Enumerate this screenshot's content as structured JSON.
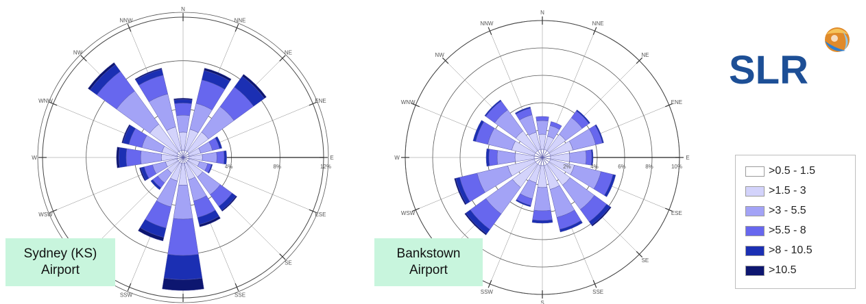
{
  "chart_data": [
    {
      "type": "wind-rose",
      "station": "Sydney (KS)\nAirport",
      "directions": [
        "N",
        "NNE",
        "NE",
        "ENE",
        "E",
        "ESE",
        "SE",
        "SSE",
        "S",
        "SSW",
        "SW",
        "WSW",
        "W",
        "WNW",
        "NW",
        "NNW"
      ],
      "ring_labels": [
        "4%",
        "8%",
        "12%"
      ],
      "speed_bins": [
        ">0.5 - 1.5",
        ">1.5 - 3",
        ">3 - 5.5",
        ">5.5 - 8",
        ">8 - 10.5",
        ">10.5"
      ],
      "max_percent": 12,
      "series": [
        {
          "direction": "N",
          "values": [
            0.6,
            1.5,
            1.4,
            1.0,
            0.3,
            0.1
          ]
        },
        {
          "direction": "NNE",
          "values": [
            0.6,
            1.8,
            2.2,
            2.0,
            0.8,
            0.2
          ]
        },
        {
          "direction": "NE",
          "values": [
            0.6,
            2.0,
            2.6,
            2.0,
            1.1,
            0.2
          ]
        },
        {
          "direction": "ENE",
          "values": [
            0.5,
            1.0,
            1.0,
            0.6,
            0.2,
            0.0
          ]
        },
        {
          "direction": "E",
          "values": [
            0.5,
            1.1,
            1.2,
            0.6,
            0.2,
            0.0
          ]
        },
        {
          "direction": "ESE",
          "values": [
            0.5,
            0.9,
            0.7,
            0.3,
            0.1,
            0.0
          ]
        },
        {
          "direction": "SE",
          "values": [
            0.5,
            1.5,
            1.8,
            1.2,
            0.4,
            0.1
          ]
        },
        {
          "direction": "SSE",
          "values": [
            0.5,
            1.4,
            1.8,
            1.4,
            0.6,
            0.2
          ]
        },
        {
          "direction": "S",
          "values": [
            0.5,
            1.8,
            2.8,
            3.0,
            2.0,
            0.9
          ]
        },
        {
          "direction": "SSW",
          "values": [
            0.5,
            1.5,
            2.2,
            1.8,
            0.8,
            0.3
          ]
        },
        {
          "direction": "SW",
          "values": [
            0.5,
            1.1,
            1.0,
            0.5,
            0.2,
            0.0
          ]
        },
        {
          "direction": "WSW",
          "values": [
            0.5,
            1.0,
            1.1,
            0.7,
            0.3,
            0.1
          ]
        },
        {
          "direction": "W",
          "values": [
            0.5,
            1.3,
            1.7,
            1.2,
            0.6,
            0.2
          ]
        },
        {
          "direction": "WNW",
          "values": [
            0.5,
            1.3,
            1.7,
            1.1,
            0.5,
            0.1
          ]
        },
        {
          "direction": "NW",
          "values": [
            0.6,
            2.8,
            3.4,
            2.0,
            0.7,
            0.2
          ]
        },
        {
          "direction": "NNW",
          "values": [
            0.6,
            2.0,
            2.8,
            1.6,
            0.5,
            0.1
          ]
        }
      ]
    },
    {
      "type": "wind-rose",
      "station": "Bankstown\nAirport",
      "directions": [
        "N",
        "NNE",
        "NE",
        "ENE",
        "E",
        "ESE",
        "SE",
        "SSE",
        "S",
        "SSW",
        "SW",
        "WSW",
        "W",
        "WNW",
        "NW",
        "NNW"
      ],
      "ring_labels": [
        "2%",
        "4%",
        "6%",
        "8%",
        "10%"
      ],
      "speed_bins": [
        ">0.5 - 1.5",
        ">1.5 - 3",
        ">3 - 5.5",
        ">5.5 - 8",
        ">8 - 10.5",
        ">10.5"
      ],
      "max_percent": 10,
      "series": [
        {
          "direction": "N",
          "values": [
            0.6,
            1.1,
            1.0,
            0.3,
            0.0,
            0.0
          ]
        },
        {
          "direction": "NNE",
          "values": [
            0.6,
            1.0,
            0.8,
            0.3,
            0.0,
            0.0
          ]
        },
        {
          "direction": "NE",
          "values": [
            0.6,
            1.5,
            1.5,
            0.6,
            0.1,
            0.0
          ]
        },
        {
          "direction": "ENE",
          "values": [
            0.6,
            1.7,
            1.7,
            0.5,
            0.1,
            0.0
          ]
        },
        {
          "direction": "E",
          "values": [
            0.6,
            1.4,
            1.2,
            0.4,
            0.1,
            0.0
          ]
        },
        {
          "direction": "ESE",
          "values": [
            0.6,
            1.8,
            2.0,
            0.9,
            0.2,
            0.0
          ]
        },
        {
          "direction": "SE",
          "values": [
            0.6,
            1.9,
            2.2,
            1.1,
            0.3,
            0.1
          ]
        },
        {
          "direction": "SSE",
          "values": [
            0.6,
            1.8,
            2.1,
            0.9,
            0.2,
            0.0
          ]
        },
        {
          "direction": "S",
          "values": [
            0.6,
            1.6,
            1.7,
            0.7,
            0.2,
            0.0
          ]
        },
        {
          "direction": "SSW",
          "values": [
            0.6,
            1.3,
            1.2,
            0.5,
            0.1,
            0.0
          ]
        },
        {
          "direction": "SW",
          "values": [
            0.6,
            2.1,
            2.4,
            1.4,
            0.4,
            0.1
          ]
        },
        {
          "direction": "WSW",
          "values": [
            0.6,
            2.0,
            2.3,
            1.3,
            0.3,
            0.1
          ]
        },
        {
          "direction": "W",
          "values": [
            0.6,
            1.4,
            1.3,
            0.6,
            0.2,
            0.0
          ]
        },
        {
          "direction": "WNW",
          "values": [
            0.6,
            1.7,
            1.8,
            0.9,
            0.2,
            0.0
          ]
        },
        {
          "direction": "NW",
          "values": [
            0.6,
            1.8,
            1.9,
            0.8,
            0.1,
            0.0
          ]
        },
        {
          "direction": "NNW",
          "values": [
            0.6,
            1.3,
            1.3,
            0.5,
            0.1,
            0.0
          ]
        }
      ]
    }
  ],
  "legend": {
    "items": [
      {
        "label": ">0.5 - 1.5",
        "color": "#ffffff"
      },
      {
        "label": ">1.5 - 3",
        "color": "#d3d3fb"
      },
      {
        "label": ">3 - 5.5",
        "color": "#a3a3f6"
      },
      {
        "label": ">5.5 - 8",
        "color": "#6767ee"
      },
      {
        "label": ">8 - 10.5",
        "color": "#1b2fb3"
      },
      {
        "label": ">10.5",
        "color": "#0d1670"
      }
    ]
  },
  "logo": {
    "text": "SLR",
    "color": "#1d4f96"
  }
}
